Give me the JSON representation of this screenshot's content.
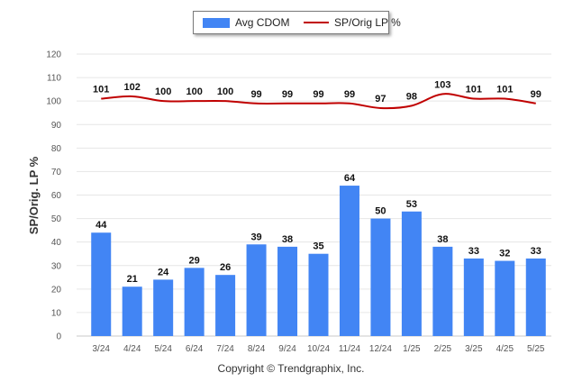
{
  "legend": {
    "bar_label": "Avg CDOM",
    "line_label": "SP/Orig LP %"
  },
  "copyright": "Copyright © Trendgraphix, Inc.",
  "colors": {
    "bar": "#4285f4",
    "line": "#c00000",
    "grid": "#e6e6e6",
    "axis_text": "#555555",
    "label_text": "#111111"
  },
  "chart_data": {
    "type": "bar",
    "categories": [
      "3/24",
      "4/24",
      "5/24",
      "6/24",
      "7/24",
      "8/24",
      "9/24",
      "10/24",
      "11/24",
      "12/24",
      "1/25",
      "2/25",
      "3/25",
      "4/25",
      "5/25"
    ],
    "ylabel": "SP/Orig. LP %",
    "xlabel": "",
    "ylim": [
      0,
      120
    ],
    "yticks": [
      0,
      10,
      20,
      30,
      40,
      50,
      60,
      70,
      80,
      90,
      100,
      110,
      120
    ],
    "grid": true,
    "legend_position": "top-center",
    "series": [
      {
        "name": "Avg CDOM",
        "type": "bar",
        "values": [
          44,
          21,
          24,
          29,
          26,
          39,
          38,
          35,
          64,
          50,
          53,
          38,
          33,
          32,
          33
        ]
      },
      {
        "name": "SP/Orig LP %",
        "type": "line",
        "values": [
          101,
          102,
          100,
          100,
          100,
          99,
          99,
          99,
          99,
          97,
          98,
          103,
          101,
          101,
          99
        ]
      }
    ]
  }
}
